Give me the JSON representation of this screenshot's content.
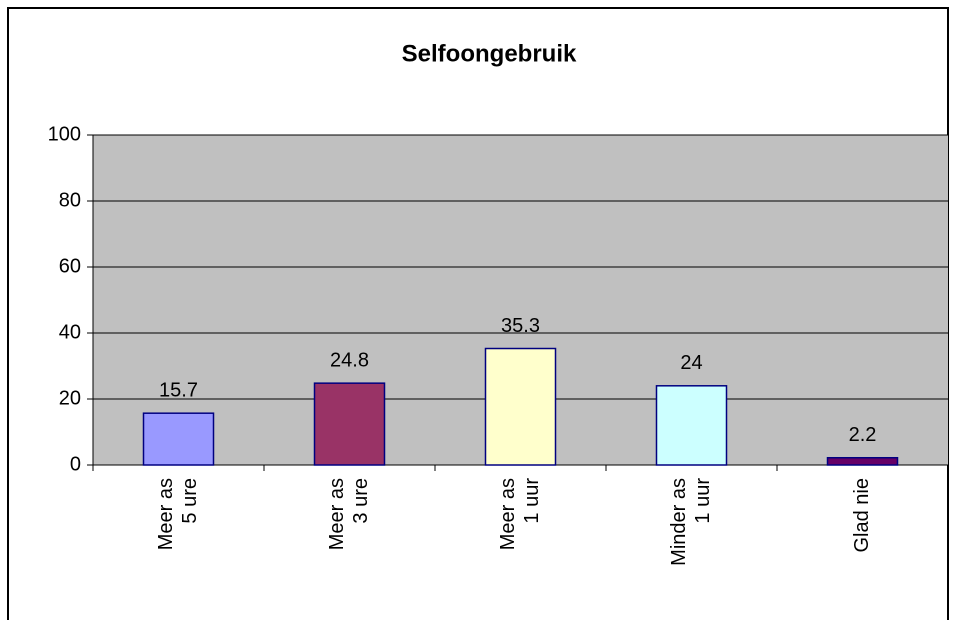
{
  "chart_data": {
    "type": "bar",
    "title": "Selfoongebruik",
    "categories": [
      [
        "Meer as",
        "5 ure"
      ],
      [
        "Meer as",
        "3 ure"
      ],
      [
        "Meer as",
        "1 uur"
      ],
      [
        "Minder as",
        "1 uur"
      ],
      [
        "Glad nie"
      ]
    ],
    "values": [
      15.7,
      24.8,
      35.3,
      24,
      2.2
    ],
    "colors": [
      "#9999ff",
      "#993366",
      "#ffffcc",
      "#ccffff",
      "#660066"
    ],
    "ylim": [
      0,
      100
    ],
    "yticks": [
      0,
      20,
      40,
      60,
      80,
      100
    ],
    "grid": true
  }
}
